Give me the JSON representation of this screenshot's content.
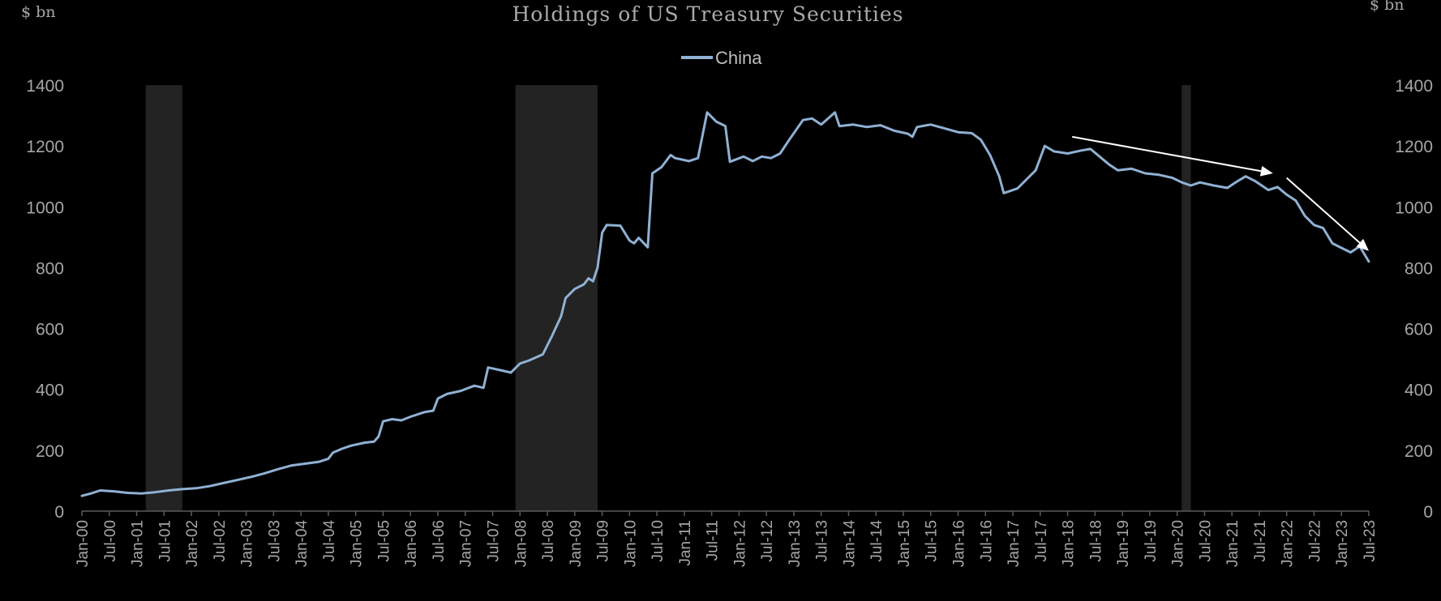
{
  "chart_data": {
    "type": "line",
    "title": "Holdings of US Treasury Securities",
    "y_unit_left": "$ bn",
    "y_unit_right": "$ bn",
    "ylim": [
      0,
      1400
    ],
    "yticks": [
      0,
      200,
      400,
      600,
      800,
      1000,
      1200,
      1400
    ],
    "x_range": [
      "2000-01",
      "2023-07"
    ],
    "x_tick_labels": [
      "Jan-00",
      "Jul-00",
      "Jan-01",
      "Jul-01",
      "Jan-02",
      "Jul-02",
      "Jan-03",
      "Jul-03",
      "Jan-04",
      "Jul-04",
      "Jan-05",
      "Jul-05",
      "Jan-06",
      "Jul-06",
      "Jan-07",
      "Jul-07",
      "Jan-08",
      "Jul-08",
      "Jan-09",
      "Jul-09",
      "Jan-10",
      "Jul-10",
      "Jan-11",
      "Jul-11",
      "Jan-12",
      "Jul-12",
      "Jan-13",
      "Jul-13",
      "Jan-14",
      "Jul-14",
      "Jan-15",
      "Jul-15",
      "Jan-16",
      "Jul-16",
      "Jan-17",
      "Jul-17",
      "Jan-18",
      "Jul-18",
      "Jan-19",
      "Jul-19",
      "Jan-20",
      "Jul-20",
      "Jan-21",
      "Jul-21",
      "Jan-22",
      "Jul-22",
      "Jan-23",
      "Jul-23"
    ],
    "legend": {
      "position": "top-center",
      "entries": [
        "China"
      ]
    },
    "grid": false,
    "recession_shading": [
      {
        "from": "2001-03",
        "to": "2001-11"
      },
      {
        "from": "2007-12",
        "to": "2009-06"
      },
      {
        "from": "2020-02",
        "to": "2020-04"
      }
    ],
    "annotation_arrows": [
      {
        "from": [
          "2018-02",
          1230
        ],
        "to": [
          "2021-10",
          1110
        ]
      },
      {
        "from": [
          "2022-01",
          1095
        ],
        "to": [
          "2023-07",
          855
        ]
      }
    ],
    "series": [
      {
        "name": "China",
        "color": "#8fb1d3",
        "points": [
          [
            "2000-01",
            50
          ],
          [
            "2000-03",
            58
          ],
          [
            "2000-05",
            68
          ],
          [
            "2000-08",
            65
          ],
          [
            "2000-11",
            60
          ],
          [
            "2001-02",
            58
          ],
          [
            "2001-05",
            62
          ],
          [
            "2001-08",
            68
          ],
          [
            "2001-11",
            72
          ],
          [
            "2002-02",
            75
          ],
          [
            "2002-05",
            82
          ],
          [
            "2002-08",
            92
          ],
          [
            "2002-11",
            102
          ],
          [
            "2003-02",
            112
          ],
          [
            "2003-05",
            124
          ],
          [
            "2003-08",
            138
          ],
          [
            "2003-11",
            150
          ],
          [
            "2004-02",
            156
          ],
          [
            "2004-05",
            162
          ],
          [
            "2004-07",
            172
          ],
          [
            "2004-08",
            192
          ],
          [
            "2004-10",
            205
          ],
          [
            "2004-12",
            215
          ],
          [
            "2005-03",
            225
          ],
          [
            "2005-05",
            228
          ],
          [
            "2005-06",
            245
          ],
          [
            "2005-07",
            295
          ],
          [
            "2005-09",
            302
          ],
          [
            "2005-11",
            298
          ],
          [
            "2006-01",
            310
          ],
          [
            "2006-04",
            325
          ],
          [
            "2006-06",
            330
          ],
          [
            "2006-07",
            370
          ],
          [
            "2006-09",
            385
          ],
          [
            "2006-12",
            395
          ],
          [
            "2007-03",
            412
          ],
          [
            "2007-05",
            405
          ],
          [
            "2007-06",
            472
          ],
          [
            "2007-09",
            462
          ],
          [
            "2007-11",
            455
          ],
          [
            "2008-01",
            485
          ],
          [
            "2008-03",
            495
          ],
          [
            "2008-06",
            515
          ],
          [
            "2008-08",
            575
          ],
          [
            "2008-10",
            640
          ],
          [
            "2008-11",
            700
          ],
          [
            "2009-01",
            730
          ],
          [
            "2009-03",
            745
          ],
          [
            "2009-04",
            765
          ],
          [
            "2009-05",
            755
          ],
          [
            "2009-06",
            800
          ],
          [
            "2009-07",
            915
          ],
          [
            "2009-08",
            940
          ],
          [
            "2009-11",
            938
          ],
          [
            "2010-01",
            889
          ],
          [
            "2010-02",
            880
          ],
          [
            "2010-03",
            898
          ],
          [
            "2010-05",
            867
          ],
          [
            "2010-06",
            1110
          ],
          [
            "2010-08",
            1130
          ],
          [
            "2010-10",
            1170
          ],
          [
            "2010-11",
            1160
          ],
          [
            "2011-02",
            1150
          ],
          [
            "2011-04",
            1160
          ],
          [
            "2011-06",
            1310
          ],
          [
            "2011-08",
            1280
          ],
          [
            "2011-10",
            1265
          ],
          [
            "2011-11",
            1148
          ],
          [
            "2012-02",
            1165
          ],
          [
            "2012-04",
            1150
          ],
          [
            "2012-06",
            1165
          ],
          [
            "2012-08",
            1160
          ],
          [
            "2012-10",
            1175
          ],
          [
            "2012-12",
            1220
          ],
          [
            "2013-03",
            1285
          ],
          [
            "2013-05",
            1290
          ],
          [
            "2013-07",
            1270
          ],
          [
            "2013-10",
            1310
          ],
          [
            "2013-11",
            1265
          ],
          [
            "2014-02",
            1270
          ],
          [
            "2014-05",
            1262
          ],
          [
            "2014-08",
            1268
          ],
          [
            "2014-11",
            1250
          ],
          [
            "2015-02",
            1240
          ],
          [
            "2015-03",
            1230
          ],
          [
            "2015-04",
            1262
          ],
          [
            "2015-07",
            1270
          ],
          [
            "2015-10",
            1258
          ],
          [
            "2016-01",
            1245
          ],
          [
            "2016-04",
            1242
          ],
          [
            "2016-06",
            1220
          ],
          [
            "2016-08",
            1170
          ],
          [
            "2016-10",
            1100
          ],
          [
            "2016-11",
            1045
          ],
          [
            "2017-02",
            1060
          ],
          [
            "2017-04",
            1090
          ],
          [
            "2017-06",
            1120
          ],
          [
            "2017-08",
            1200
          ],
          [
            "2017-10",
            1182
          ],
          [
            "2018-01",
            1175
          ],
          [
            "2018-04",
            1185
          ],
          [
            "2018-06",
            1190
          ],
          [
            "2018-08",
            1165
          ],
          [
            "2018-10",
            1140
          ],
          [
            "2018-12",
            1120
          ],
          [
            "2019-03",
            1125
          ],
          [
            "2019-06",
            1110
          ],
          [
            "2019-09",
            1105
          ],
          [
            "2019-12",
            1095
          ],
          [
            "2020-02",
            1080
          ],
          [
            "2020-04",
            1070
          ],
          [
            "2020-06",
            1080
          ],
          [
            "2020-09",
            1070
          ],
          [
            "2020-12",
            1062
          ],
          [
            "2021-02",
            1082
          ],
          [
            "2021-04",
            1100
          ],
          [
            "2021-06",
            1085
          ],
          [
            "2021-09",
            1055
          ],
          [
            "2021-11",
            1065
          ],
          [
            "2022-01",
            1040
          ],
          [
            "2022-03",
            1020
          ],
          [
            "2022-05",
            970
          ],
          [
            "2022-07",
            940
          ],
          [
            "2022-09",
            930
          ],
          [
            "2022-11",
            880
          ],
          [
            "2023-01",
            865
          ],
          [
            "2023-03",
            850
          ],
          [
            "2023-05",
            870
          ],
          [
            "2023-07",
            820
          ]
        ]
      }
    ]
  }
}
